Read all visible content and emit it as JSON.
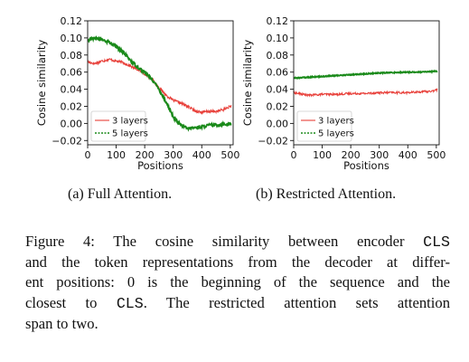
{
  "chart_data": [
    {
      "type": "line",
      "panel": "a",
      "xlabel": "Positions",
      "ylabel": "Cosine similarity",
      "xlim": [
        0,
        510
      ],
      "ylim": [
        -0.025,
        0.12
      ],
      "xticks": [
        "0",
        "100",
        "200",
        "300",
        "400",
        "500"
      ],
      "yticks": [
        "−0.02",
        "0.00",
        "0.02",
        "0.04",
        "0.06",
        "0.08",
        "0.10",
        "0.12"
      ],
      "grid": false,
      "legend_position": "lower-left",
      "series": [
        {
          "name": "3 layers",
          "color": "#e8403a",
          "linestyle": "solid",
          "x": [
            0,
            25,
            50,
            75,
            100,
            125,
            150,
            175,
            200,
            225,
            250,
            275,
            300,
            325,
            350,
            375,
            400,
            425,
            450,
            475,
            500
          ],
          "y": [
            0.072,
            0.07,
            0.073,
            0.075,
            0.073,
            0.071,
            0.067,
            0.063,
            0.058,
            0.052,
            0.042,
            0.033,
            0.027,
            0.024,
            0.02,
            0.015,
            0.013,
            0.014,
            0.014,
            0.016,
            0.02
          ]
        },
        {
          "name": "5 layers",
          "color": "#1a8a1a",
          "linestyle": "dashed",
          "x": [
            0,
            25,
            50,
            75,
            100,
            125,
            150,
            175,
            200,
            225,
            250,
            275,
            300,
            325,
            350,
            375,
            400,
            425,
            450,
            475,
            500
          ],
          "y": [
            0.097,
            0.1,
            0.098,
            0.095,
            0.09,
            0.083,
            0.074,
            0.066,
            0.06,
            0.052,
            0.04,
            0.025,
            0.008,
            -0.002,
            -0.006,
            -0.005,
            -0.004,
            -0.002,
            -0.002,
            -0.001,
            -0.001
          ]
        }
      ]
    },
    {
      "type": "line",
      "panel": "b",
      "xlabel": "Positions",
      "ylabel": "Cosine similarity",
      "xlim": [
        0,
        510
      ],
      "ylim": [
        -0.025,
        0.12
      ],
      "xticks": [
        "0",
        "100",
        "200",
        "300",
        "400",
        "500"
      ],
      "yticks": [
        "−0.02",
        "0.00",
        "0.02",
        "0.04",
        "0.06",
        "0.08",
        "0.10",
        "0.12"
      ],
      "grid": false,
      "legend_position": "lower-left",
      "series": [
        {
          "name": "3 layers",
          "color": "#e8403a",
          "linestyle": "solid",
          "x": [
            0,
            50,
            100,
            150,
            200,
            250,
            300,
            350,
            400,
            450,
            500
          ],
          "y": [
            0.036,
            0.033,
            0.034,
            0.034,
            0.035,
            0.035,
            0.036,
            0.036,
            0.036,
            0.037,
            0.038
          ]
        },
        {
          "name": "5 layers",
          "color": "#1a8a1a",
          "linestyle": "dashed",
          "x": [
            0,
            50,
            100,
            150,
            200,
            250,
            300,
            350,
            400,
            450,
            500
          ],
          "y": [
            0.053,
            0.054,
            0.055,
            0.056,
            0.057,
            0.058,
            0.059,
            0.0595,
            0.06,
            0.06,
            0.061
          ]
        }
      ]
    }
  ],
  "subcaptions": {
    "a": "(a) Full Attention.",
    "b": "(b) Restricted Attention."
  },
  "caption_lines": [
    {
      "text": "Figure 4: The cosine similarity between encoder ",
      "mono": "CLS",
      "after": ""
    },
    {
      "text": "and the token representations from the decoder at differ-",
      "mono": "",
      "after": ""
    },
    {
      "text": "ent positions: 0 is the beginning of the sequence and the",
      "mono": "",
      "after": ""
    },
    {
      "text": "closest to ",
      "mono": "CLS",
      "after": ". The restricted attention sets attention"
    },
    {
      "text": "span to two.",
      "mono": "",
      "after": ""
    }
  ]
}
